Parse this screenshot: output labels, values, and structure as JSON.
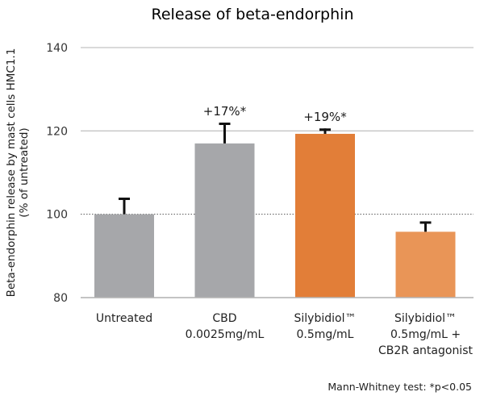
{
  "chart_data": {
    "type": "bar",
    "title": "Release of beta-endorphin",
    "ylabel_lines": [
      "Beta-endorphin release by mast cells HMC1.1",
      "(% of untreated)"
    ],
    "xlabel": "",
    "ylim": [
      80,
      140
    ],
    "yticks": [
      80,
      100,
      120,
      140
    ],
    "reference_line": 100,
    "grid": false,
    "categories": [
      [
        "Untreated"
      ],
      [
        "CBD",
        "0.0025mg/mL"
      ],
      [
        "Silybidiol™",
        "0.5mg/mL"
      ],
      [
        "Silybidiol™",
        "0.5mg/mL +",
        "CB2R antagonist"
      ]
    ],
    "values": [
      100,
      117,
      119.3,
      95.8
    ],
    "error_upper": [
      104,
      122,
      120.6,
      98.3
    ],
    "colors": [
      "#a6a7aa",
      "#a6a7aa",
      "#e27e38",
      "#e99557"
    ],
    "annotations": [
      "",
      "+17%*",
      "+19%*",
      ""
    ],
    "footnote": "Mann-Whitney test: *p<0.05"
  }
}
